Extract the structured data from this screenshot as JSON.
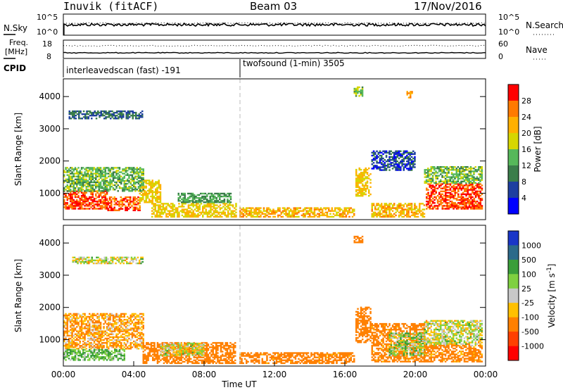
{
  "header": {
    "station": "Inuvik (fitACF)",
    "beam": "Beam 03",
    "date": "17/Nov/2016"
  },
  "top_panels": {
    "nsky_label": "N.Sky",
    "nsky_ticks": [
      "10^5",
      "10^0"
    ],
    "nsearch_label": "N.Search",
    "nsearch_ticks": [
      "10^5",
      "10^0"
    ],
    "freq_label": "Freq.",
    "freq_unit": "[MHz]",
    "freq_ticks": [
      "18",
      "8"
    ],
    "nave_label": "Nave",
    "nave_ticks": [
      "60",
      "0"
    ],
    "cpid_label": "CPID",
    "cpid_segments": [
      {
        "label": "interleavedscan (fast) -191",
        "start_ut": 0
      },
      {
        "label": "twofsound (1-min) 3505",
        "start_ut": 10
      }
    ]
  },
  "chart_data": [
    {
      "type": "heatmap",
      "name": "power",
      "ylabel": "Slant Range [km]",
      "xlabel": "",
      "y_ticks": [
        "1000",
        "2000",
        "3000",
        "4000"
      ],
      "ylim": [
        180,
        4550
      ],
      "colorbar": {
        "label": "Power [dB]",
        "ticks": [
          "4",
          "8",
          "12",
          "16",
          "20",
          "24",
          "28"
        ],
        "range": [
          0,
          32
        ],
        "colors": [
          "#0000ff",
          "#1e3fa0",
          "#3a7d4a",
          "#56b85a",
          "#d6d600",
          "#ffb000",
          "#ff7a00",
          "#ff0000"
        ]
      },
      "regions": [
        {
          "t0": 0,
          "t1": 2.5,
          "r0": 500,
          "r1": 1050,
          "level": 28
        },
        {
          "t0": 2.5,
          "t1": 4.3,
          "r0": 450,
          "r1": 900,
          "level": 27
        },
        {
          "t0": 4.3,
          "t1": 5.5,
          "r0": 700,
          "r1": 1400,
          "level": 20
        },
        {
          "t0": 0,
          "t1": 4.5,
          "r0": 1050,
          "r1": 1800,
          "level": 14
        },
        {
          "t0": 5,
          "t1": 9.8,
          "r0": 250,
          "r1": 700,
          "level": 20
        },
        {
          "t0": 6.5,
          "t1": 9.5,
          "r0": 700,
          "r1": 1000,
          "level": 12
        },
        {
          "t0": 10,
          "t1": 16.5,
          "r0": 250,
          "r1": 550,
          "level": 22
        },
        {
          "t0": 16.6,
          "t1": 17.5,
          "r0": 900,
          "r1": 1800,
          "level": 20
        },
        {
          "t0": 17.5,
          "t1": 20.5,
          "r0": 250,
          "r1": 700,
          "level": 22
        },
        {
          "t0": 20.6,
          "t1": 23.8,
          "r0": 500,
          "r1": 1300,
          "level": 28
        },
        {
          "t0": 20.5,
          "t1": 23.8,
          "r0": 1300,
          "r1": 1800,
          "level": 14
        },
        {
          "t0": 17.5,
          "t1": 20.0,
          "r0": 1700,
          "r1": 2300,
          "level": 6
        },
        {
          "t0": 0.3,
          "t1": 4.5,
          "r0": 3300,
          "r1": 3550,
          "level": 8
        },
        {
          "t0": 16.5,
          "t1": 17.0,
          "r0": 4000,
          "r1": 4300,
          "level": 14
        },
        {
          "t0": 19.5,
          "t1": 19.8,
          "r0": 3950,
          "r1": 4150,
          "level": 24
        }
      ]
    },
    {
      "type": "heatmap",
      "name": "velocity",
      "ylabel": "Slant Range [km]",
      "xlabel": "Time UT",
      "y_ticks": [
        "1000",
        "2000",
        "3000",
        "4000"
      ],
      "ylim": [
        180,
        4550
      ],
      "x_ticks": [
        "00:00",
        "04:00",
        "08:00",
        "12:00",
        "16:00",
        "20:00",
        "00:00"
      ],
      "xlim": [
        0,
        24
      ],
      "colorbar": {
        "label": "Velocity [m s-1]",
        "ticks": [
          "1000",
          "500",
          "100",
          "25",
          "-25",
          "-100",
          "-500",
          "-1000"
        ],
        "colors": [
          "#1a36c8",
          "#2c6a8a",
          "#3a9e3a",
          "#7fd040",
          "#c8c8c8",
          "#ffc000",
          "#ff8000",
          "#ff4000",
          "#ff0000"
        ]
      },
      "regions": [
        {
          "t0": 0,
          "t1": 4.5,
          "r0": 700,
          "r1": 1800,
          "level": -100
        },
        {
          "t0": 0,
          "t1": 3.5,
          "r0": 350,
          "r1": 700,
          "level": 100
        },
        {
          "t0": 4.5,
          "t1": 9.8,
          "r0": 250,
          "r1": 900,
          "level": -300
        },
        {
          "t0": 5.5,
          "t1": 8.0,
          "r0": 500,
          "r1": 900,
          "level": 0
        },
        {
          "t0": 10,
          "t1": 16.5,
          "r0": 250,
          "r1": 600,
          "level": -200
        },
        {
          "t0": 16.6,
          "t1": 17.5,
          "r0": 900,
          "r1": 2000,
          "level": -300
        },
        {
          "t0": 17.5,
          "t1": 20.5,
          "r0": 300,
          "r1": 1500,
          "level": -200
        },
        {
          "t0": 18.5,
          "t1": 20.5,
          "r0": 500,
          "r1": 1200,
          "level": 60
        },
        {
          "t0": 20.5,
          "t1": 23.8,
          "r0": 800,
          "r1": 1600,
          "level": 0
        },
        {
          "t0": 20.5,
          "t1": 23.8,
          "r0": 300,
          "r1": 800,
          "level": -200
        },
        {
          "t0": 0.5,
          "t1": 4.5,
          "r0": 3350,
          "r1": 3550,
          "level": 0
        },
        {
          "t0": 16.5,
          "t1": 17.0,
          "r0": 4000,
          "r1": 4200,
          "level": -300
        }
      ]
    }
  ]
}
